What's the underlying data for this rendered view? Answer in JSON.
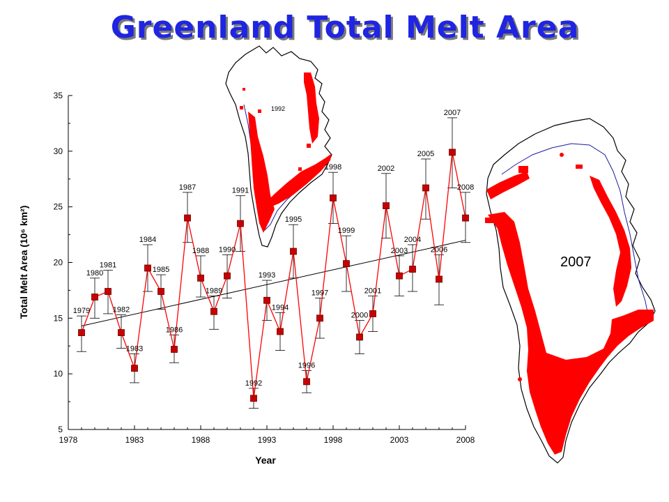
{
  "page": {
    "title": "Greenland Total Melt Area"
  },
  "maps": [
    {
      "year_label": "1992"
    },
    {
      "year_label": "2007"
    }
  ],
  "colors": {
    "title": "#1f25e0",
    "series": "#ff0000",
    "marker": "#c80000",
    "trend": "#000000",
    "coast": "#1a1aa0"
  },
  "icons": [
    "greenland-map-1992-icon",
    "greenland-map-2007-icon"
  ],
  "chart_data": {
    "type": "line",
    "title": "",
    "xlabel": "Year",
    "ylabel": "Total Melt Area (10⁶ km²)",
    "xlim": [
      1978,
      2008
    ],
    "ylim": [
      5,
      35
    ],
    "xticks": [
      1978,
      1983,
      1988,
      1993,
      1998,
      2003,
      2008
    ],
    "yticks": [
      5,
      10,
      15,
      20,
      25,
      30,
      35
    ],
    "grid": false,
    "series": [
      {
        "x": [
          1979,
          1980,
          1981,
          1982,
          1983,
          1984,
          1985,
          1986,
          1987,
          1988,
          1989,
          1990,
          1991,
          1992,
          1993,
          1994,
          1995,
          1996,
          1997,
          1998,
          1999,
          2000,
          2001,
          2002,
          2003,
          2004,
          2005,
          2006,
          2007,
          2008
        ],
        "y": [
          13.7,
          16.9,
          17.4,
          13.7,
          10.5,
          19.5,
          17.4,
          12.2,
          24.0,
          18.6,
          15.6,
          18.8,
          23.5,
          7.8,
          16.6,
          13.8,
          21.0,
          9.3,
          15.0,
          25.8,
          19.9,
          13.3,
          15.4,
          25.1,
          18.8,
          19.4,
          26.7,
          18.5,
          29.9,
          24.0
        ],
        "error_low": [
          12.0,
          15.0,
          15.4,
          12.3,
          9.2,
          17.4,
          15.8,
          11.0,
          21.8,
          16.9,
          14.0,
          16.8,
          21.0,
          6.9,
          14.8,
          12.1,
          18.6,
          8.3,
          13.2,
          23.5,
          17.4,
          11.8,
          13.8,
          22.2,
          17.0,
          17.4,
          23.9,
          16.2,
          26.7,
          21.8
        ],
        "error_high": [
          15.2,
          18.6,
          19.3,
          15.3,
          11.8,
          21.6,
          18.9,
          13.5,
          26.3,
          20.6,
          17.0,
          20.7,
          26.0,
          8.7,
          18.4,
          15.5,
          23.4,
          10.3,
          16.8,
          28.1,
          22.4,
          14.8,
          17.0,
          28.0,
          20.6,
          21.6,
          29.3,
          20.7,
          33.0,
          26.3
        ],
        "labels": [
          "1979",
          "1980",
          "1981",
          "1982",
          "1983",
          "1984",
          "1985",
          "1986",
          "1987",
          "1988",
          "1989",
          "1990",
          "1991",
          "1992",
          "1993",
          "1994",
          "1995",
          "1996",
          "1997",
          "1998",
          "1999",
          "2000",
          "2001",
          "2002",
          "2003",
          "2004",
          "2005",
          "2006",
          "2007",
          "2008"
        ]
      }
    ],
    "trendline": {
      "x": [
        1979,
        2008
      ],
      "y": [
        14.3,
        22.0
      ]
    }
  }
}
